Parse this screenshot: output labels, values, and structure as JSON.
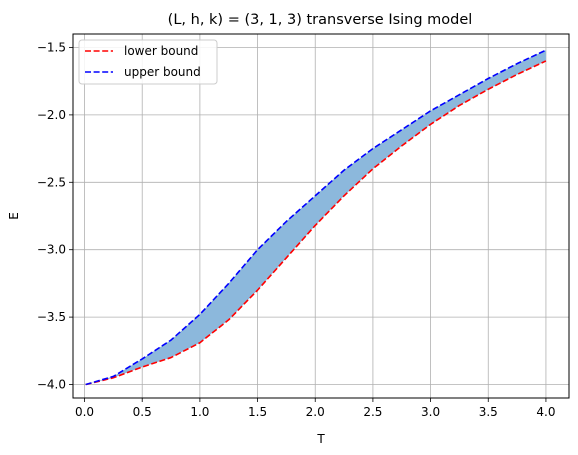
{
  "chart_data": {
    "type": "line",
    "title": "(L, h, k) = (3, 1, 3) transverse Ising model",
    "xlabel": "T",
    "ylabel": "E",
    "xlim": [
      -0.1,
      4.2
    ],
    "ylim": [
      -4.1,
      -1.4
    ],
    "grid": true,
    "legend_position": "top-left",
    "x_ticks": [
      0.0,
      0.5,
      1.0,
      1.5,
      2.0,
      2.5,
      3.0,
      3.5,
      4.0
    ],
    "x_tick_labels": [
      "0.0",
      "0.5",
      "1.0",
      "1.5",
      "2.0",
      "2.5",
      "3.0",
      "3.5",
      "4.0"
    ],
    "y_ticks": [
      -4.0,
      -3.5,
      -3.0,
      -2.5,
      -2.0,
      -1.5
    ],
    "y_tick_labels": [
      "−4.0",
      "−3.5",
      "−3.0",
      "−2.5",
      "−2.0",
      "−1.5"
    ],
    "fill_color": "#8cb8dc",
    "x": [
      0.01,
      0.25,
      0.5,
      0.75,
      1.0,
      1.25,
      1.5,
      1.75,
      2.0,
      2.25,
      2.5,
      2.75,
      3.0,
      3.25,
      3.5,
      3.75,
      4.0
    ],
    "series": [
      {
        "name": "lower bound",
        "color": "#ff0000",
        "style": "dashed",
        "values": [
          -4.0,
          -3.95,
          -3.87,
          -3.8,
          -3.69,
          -3.52,
          -3.3,
          -3.06,
          -2.82,
          -2.6,
          -2.4,
          -2.23,
          -2.07,
          -1.93,
          -1.81,
          -1.7,
          -1.6
        ]
      },
      {
        "name": "upper bound",
        "color": "#0000ff",
        "style": "dashed",
        "values": [
          -4.0,
          -3.94,
          -3.81,
          -3.67,
          -3.48,
          -3.25,
          -3.0,
          -2.79,
          -2.6,
          -2.41,
          -2.25,
          -2.11,
          -1.97,
          -1.85,
          -1.73,
          -1.62,
          -1.52
        ]
      }
    ]
  }
}
